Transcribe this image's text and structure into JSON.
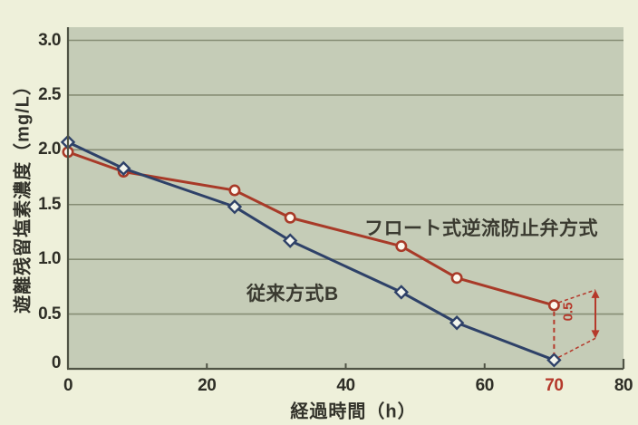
{
  "chart_data": {
    "type": "line",
    "x": [
      0,
      8,
      24,
      32,
      48,
      56,
      70
    ],
    "series": [
      {
        "name": "フロート式逆流防止弁方式",
        "color": "#a83a28",
        "marker": "circle",
        "marker_fill": "#fdf8ee",
        "values": [
          1.98,
          1.8,
          1.63,
          1.38,
          1.12,
          0.83,
          0.58
        ]
      },
      {
        "name": "従来方式B",
        "color": "#2e4168",
        "marker": "diamond",
        "marker_fill": "#f2f4ec",
        "values": [
          2.07,
          1.83,
          1.48,
          1.17,
          0.7,
          0.42,
          0.08
        ]
      }
    ],
    "xlabel": "経過時間（h）",
    "ylabel": "遊離残留塩素濃度（mg/L）",
    "xlim": [
      0,
      80
    ],
    "ylim": [
      0,
      3.12
    ],
    "grid": "horizontal",
    "legend_position": "inline-labels",
    "y_ticks": [
      {
        "label": "3.0",
        "value": 3.0
      },
      {
        "label": "2.5",
        "value": 2.5
      },
      {
        "label": "2.0",
        "value": 2.0
      },
      {
        "label": "1.5",
        "value": 1.5
      },
      {
        "label": "1.0",
        "value": 1.0
      },
      {
        "label": "0.5",
        "value": 0.5
      },
      {
        "label": "0",
        "value": 0
      }
    ],
    "x_ticks": [
      {
        "label": "0",
        "value": 0,
        "highlight": false
      },
      {
        "label": "20",
        "value": 20,
        "highlight": false
      },
      {
        "label": "40",
        "value": 40,
        "highlight": false
      },
      {
        "label": "60",
        "value": 60,
        "highlight": false
      },
      {
        "label": "70",
        "value": 70,
        "highlight": true
      },
      {
        "label": "80",
        "value": 80,
        "highlight": false
      }
    ],
    "annotation": {
      "x": 70,
      "label": "0.5",
      "color": "#b5392b",
      "top_value": 0.58,
      "bottom_value": 0.08
    }
  },
  "colors": {
    "outer_background": "#eef0da",
    "plot_background": "#c5ccb7",
    "gridline": "#868d74",
    "axis": "#4f5344",
    "tick_text": "#2e2e26",
    "highlight_red": "#b5392b",
    "series_red": "#a83a28",
    "series_blue": "#2e4168"
  }
}
